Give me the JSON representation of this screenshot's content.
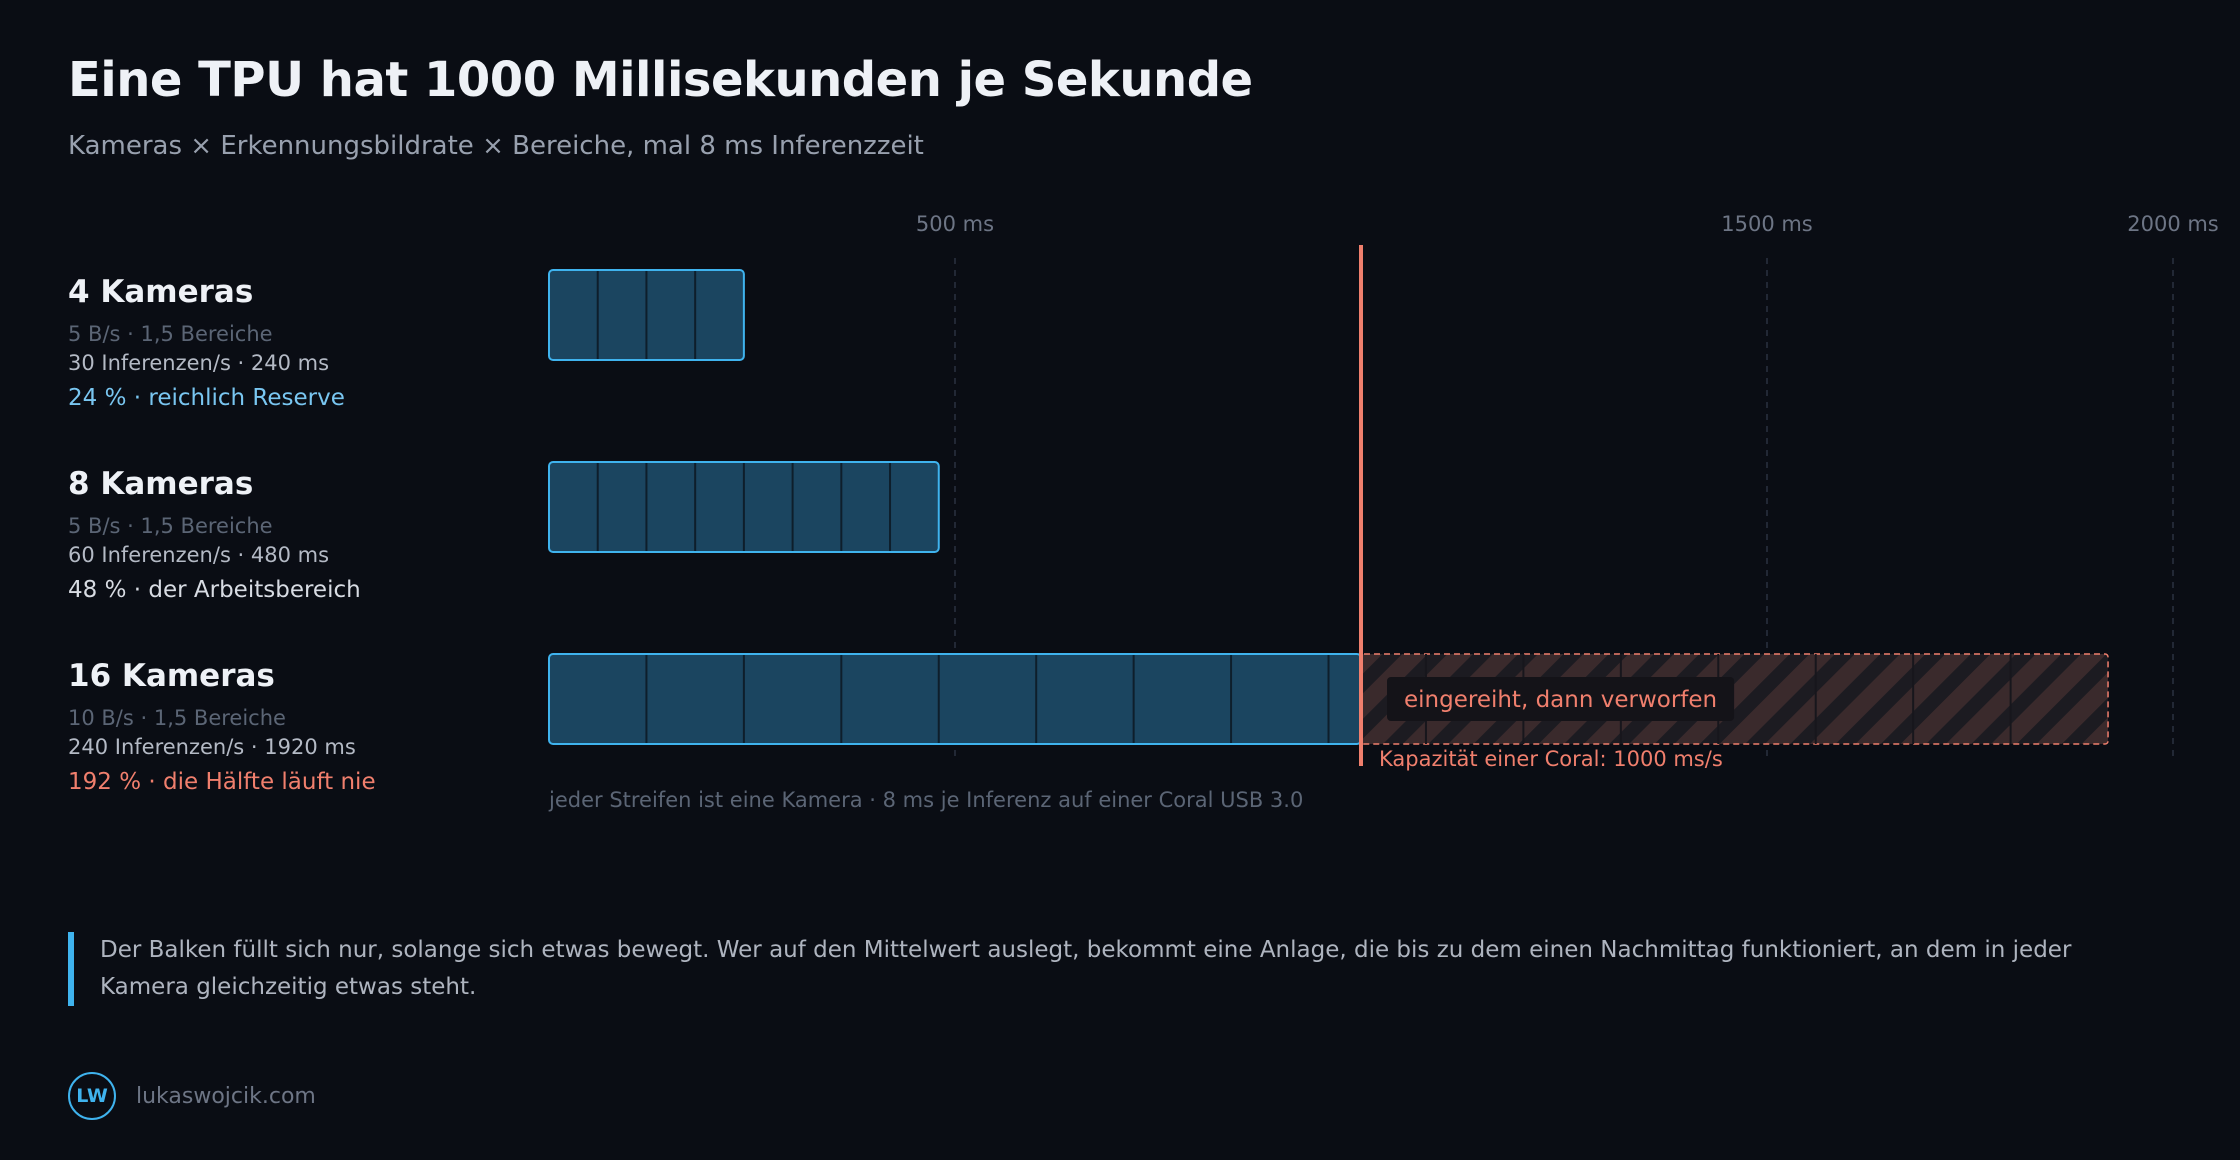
{
  "title": "Eine TPU hat 1000 Millisekunden je Sekunde",
  "subtitle": "Kameras × Erkennungsbildrate × Bereiche, mal 8 ms Inferenzzeit",
  "rows": [
    {
      "name": "4 Kameras",
      "meta": "5 B/s · 1,5 Bereiche",
      "inf": "30 Inferenzen/s · 240 ms",
      "pct": "24 % · reichlich Reserve"
    },
    {
      "name": "8 Kameras",
      "meta": "5 B/s · 1,5 Bereiche",
      "inf": "60 Inferenzen/s · 480 ms",
      "pct": "48 % · der Arbeitsbereich"
    },
    {
      "name": "16 Kameras",
      "meta": "10 B/s · 1,5 Bereiche",
      "inf": "240 Inferenzen/s · 1920 ms",
      "pct": "192 % · die Hälfte läuft nie"
    }
  ],
  "chart_data": {
    "type": "bar",
    "orientation": "horizontal",
    "unit": "ms",
    "xlim": [
      0,
      2000
    ],
    "ticks": [
      {
        "value": 500,
        "label": "500 ms"
      },
      {
        "value": 1500,
        "label": "1500 ms"
      },
      {
        "value": 2000,
        "label": "2000 ms"
      }
    ],
    "grid": true,
    "categories": [
      "4 Kameras",
      "8 Kameras",
      "16 Kameras"
    ],
    "values": [
      240,
      480,
      1920
    ],
    "segments_per_bar": [
      4,
      8,
      16
    ],
    "capacity": {
      "value": 1000,
      "label": "Kapazität einer Coral: 1000 ms/s"
    },
    "overflow_label": "eingereiht, dann verworfen",
    "note": "jeder Streifen ist eine Kamera · 8 ms je Inferenz auf einer Coral USB 3.0"
  },
  "callout": "Der Balken füllt sich nur, solange sich etwas bewegt. Wer auf den Mittelwert auslegt, bekommt eine Anlage, die bis zu dem einen Nachmittag funktioniert, an dem in jeder Kamera gleichzeitig etwas steht.",
  "footer": {
    "logo": "LW",
    "site": "lukaswojcik.com"
  },
  "colors": {
    "background": "#0a0d14",
    "bar_fill": "#1b4560",
    "bar_stroke": "#3fb3ee",
    "overflow": "#f07f6d",
    "capacity_line": "#f07f6d"
  }
}
